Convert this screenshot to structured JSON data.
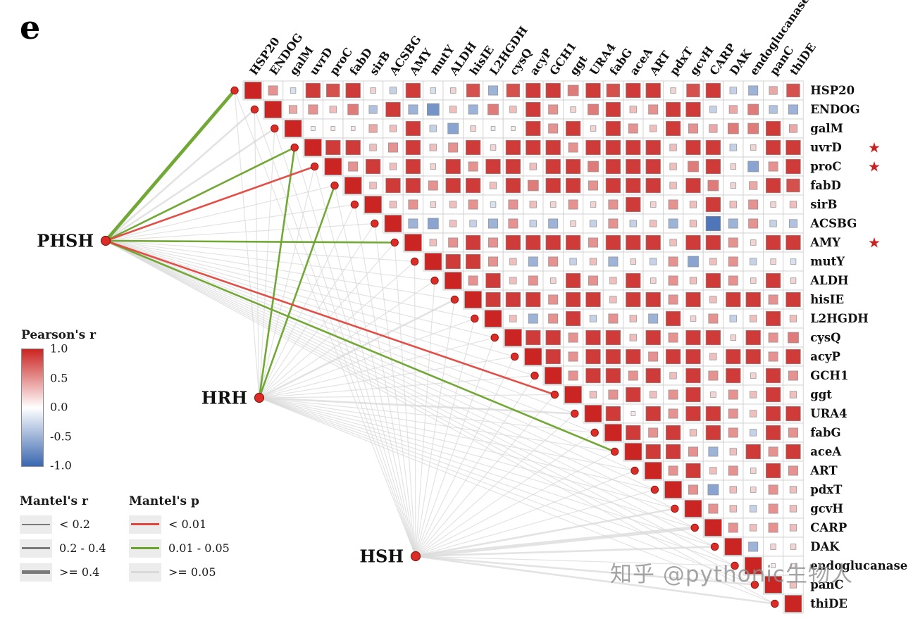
{
  "panel_label": "e",
  "watermark": "知乎 @pythonic生物人",
  "legend": {
    "pearson": {
      "title": "Pearson's r",
      "ticks": [
        "1.0",
        "0.5",
        "0.0",
        "-0.5",
        "-1.0"
      ],
      "colors": {
        "positive": "#ca2522",
        "zero": "#ffffff",
        "negative": "#3a67b0"
      }
    },
    "mantel_r": {
      "title": "Mantel's r",
      "items": [
        {
          "label": "< 0.2",
          "width": 1.2
        },
        {
          "label": "0.2 - 0.4",
          "width": 2.6
        },
        {
          "label": ">= 0.4",
          "width": 4.8
        }
      ]
    },
    "mantel_p": {
      "title": "Mantel's p",
      "items": [
        {
          "label": "< 0.01",
          "color": "#e2453c"
        },
        {
          "label": "0.01 - 0.05",
          "color": "#6aa42b"
        },
        {
          "label": ">= 0.05",
          "color": "#d9d9d9"
        }
      ]
    }
  },
  "chart_data": {
    "type": "heatmap",
    "title": "",
    "xlabel": "",
    "ylabel": "",
    "value_range": [
      -1,
      1
    ],
    "categories": [
      "HSP20",
      "ENDOG",
      "galM",
      "uvrD",
      "proC",
      "fabD",
      "sirB",
      "ACSBG",
      "AMY",
      "mutY",
      "ALDH",
      "hisIE",
      "L2HGDH",
      "cysQ",
      "acyP",
      "GCH1",
      "ggt",
      "URA4",
      "fabG",
      "aceA",
      "ART",
      "pdxT",
      "gcvH",
      "CARP",
      "DAK",
      "endoglucanase",
      "panC",
      "thiDE"
    ],
    "starred": [
      "uvrD",
      "proC",
      "AMY"
    ],
    "hubs": [
      "PHSH",
      "HRH",
      "HSH"
    ],
    "matrix_upper_triangle_rows": [
      [
        1,
        0.5,
        -0.2,
        0.9,
        0.8,
        0.9,
        0.2,
        -0.3,
        0.9,
        -0.2,
        0.2,
        0.8,
        -0.5,
        0.8,
        0.9,
        0.9,
        0.6,
        0.9,
        0.8,
        0.9,
        0.9,
        0.2,
        0.8,
        0.9,
        -0.3,
        -0.5,
        0.4,
        0.8
      ],
      [
        1,
        0.4,
        0.5,
        0.3,
        0.6,
        -0.4,
        0.9,
        -0.5,
        -0.7,
        0.3,
        -0.5,
        0.6,
        0.3,
        0.9,
        0.5,
        0.2,
        0.6,
        0.9,
        0.3,
        0.5,
        0.9,
        0.9,
        -0.3,
        0.4,
        0.6,
        -0.4,
        -0.5
      ],
      [
        1,
        -0.1,
        0.1,
        0.1,
        0.4,
        0.3,
        0.9,
        -0.3,
        -0.6,
        0.2,
        -0.1,
        0.1,
        0.9,
        0.5,
        0.9,
        0.2,
        0.9,
        0.5,
        0.3,
        0.9,
        0.5,
        0.4,
        0.6,
        0.6,
        0.9,
        0.4
      ],
      [
        1,
        0.9,
        0.9,
        0.3,
        0.5,
        0.9,
        0.3,
        0.5,
        0.9,
        0.2,
        0.9,
        0.9,
        0.9,
        0.5,
        0.9,
        0.9,
        0.9,
        0.9,
        0.3,
        0.9,
        0.9,
        -0.3,
        0.2,
        0.9,
        0.9
      ],
      [
        1,
        0.5,
        0.9,
        0.3,
        0.9,
        0.2,
        0.9,
        0.5,
        0.9,
        0.9,
        0.3,
        0.9,
        0.9,
        0.6,
        0.9,
        0.9,
        0.9,
        0.3,
        0.6,
        0.9,
        0.2,
        -0.6,
        0.5,
        0.9
      ],
      [
        1,
        0.3,
        0.9,
        0.9,
        0.5,
        0.9,
        0.9,
        0.3,
        0.9,
        0.6,
        0.9,
        0.9,
        0.5,
        0.9,
        0.9,
        0.9,
        0.3,
        0.9,
        0.6,
        0.2,
        0.4,
        0.9,
        0.8
      ],
      [
        1,
        0.3,
        0.5,
        0.2,
        0.3,
        0.5,
        -0.2,
        0.5,
        0.3,
        0.2,
        0.5,
        0.2,
        0.5,
        0.9,
        0.2,
        0.5,
        0.3,
        0.9,
        0.3,
        0.5,
        0.2,
        0.3
      ],
      [
        1,
        -0.5,
        -0.6,
        0.3,
        -0.3,
        -0.5,
        0.5,
        -0.3,
        -0.5,
        0.2,
        -0.3,
        0.5,
        -0.3,
        0.3,
        -0.5,
        0.3,
        -0.9,
        -0.5,
        0.5,
        -0.3,
        -0.4
      ],
      [
        1,
        0.3,
        0.5,
        0.9,
        0.5,
        0.9,
        0.9,
        0.9,
        0.9,
        0.5,
        0.9,
        0.9,
        0.9,
        0.3,
        0.9,
        0.9,
        0.5,
        0.2,
        0.9,
        0.9
      ],
      [
        1,
        0.9,
        0.9,
        0.5,
        0.3,
        -0.5,
        0.5,
        -0.3,
        0.3,
        -0.5,
        0.2,
        -0.3,
        0.5,
        -0.6,
        0.3,
        0.5,
        -0.3,
        0.2,
        -0.2
      ],
      [
        1,
        0.5,
        0.9,
        0.3,
        0.5,
        0.2,
        0.9,
        0.5,
        0.3,
        0.9,
        0.2,
        0.5,
        0.3,
        0.9,
        0.5,
        0.2,
        0.9,
        0.2
      ],
      [
        1,
        0.9,
        0.9,
        0.9,
        0.5,
        0.9,
        0.9,
        0.3,
        0.9,
        0.9,
        0.5,
        0.9,
        0.3,
        0.9,
        0.9,
        0.5,
        0.9
      ],
      [
        1,
        0.3,
        -0.5,
        0.5,
        0.9,
        -0.3,
        0.5,
        0.3,
        -0.5,
        0.9,
        0.2,
        0.5,
        -0.3,
        0.3,
        0.9,
        0.3
      ],
      [
        1,
        0.9,
        0.9,
        0.5,
        0.9,
        0.9,
        0.3,
        0.9,
        0.5,
        0.9,
        0.9,
        0.2,
        0.9,
        0.5,
        0.6
      ],
      [
        1,
        0.9,
        0.5,
        0.9,
        0.9,
        0.9,
        0.5,
        0.9,
        0.9,
        0.3,
        0.9,
        0.9,
        0.5,
        0.9
      ],
      [
        1,
        0.5,
        0.9,
        0.9,
        0.5,
        0.9,
        0.3,
        0.9,
        0.5,
        0.9,
        0.2,
        0.9,
        0.5
      ],
      [
        1,
        0.3,
        0.5,
        0.9,
        0.3,
        0.5,
        0.9,
        0.2,
        0.5,
        0.3,
        0.9,
        0.3
      ],
      [
        1,
        0.9,
        0.1,
        0.9,
        0.5,
        0.9,
        0.9,
        0.5,
        0.3,
        0.9,
        0.9
      ],
      [
        1,
        0.9,
        0.5,
        0.9,
        0.3,
        0.9,
        0.5,
        -0.3,
        0.9,
        0.5
      ],
      [
        1,
        0.9,
        0.9,
        0.5,
        -0.5,
        0.3,
        0.9,
        0.5,
        0.9
      ],
      [
        1,
        0.5,
        0.9,
        0.3,
        0.5,
        0.2,
        0.9,
        0.5
      ],
      [
        1,
        0.5,
        -0.6,
        0.3,
        0.2,
        0.5,
        0.3
      ],
      [
        1,
        0.5,
        0.3,
        -0.3,
        0.5,
        0.3
      ],
      [
        1,
        0.5,
        0.3,
        0.5,
        0.3
      ],
      [
        1,
        -0.5,
        0.2,
        0.2
      ],
      [
        1,
        0.1,
        0.1
      ],
      [
        1,
        0.3
      ],
      [
        1
      ]
    ],
    "mantel": {
      "default": {
        "r": "< 0.2",
        "p": ">= 0.05"
      },
      "links": [
        {
          "s": "PHSH",
          "t": "HSP20",
          "r": ">= 0.4",
          "p": "0.01 - 0.05"
        },
        {
          "s": "PHSH",
          "t": "uvrD",
          "r": "0.2 - 0.4",
          "p": "0.01 - 0.05"
        },
        {
          "s": "PHSH",
          "t": "proC",
          "r": "0.2 - 0.4",
          "p": "< 0.01"
        },
        {
          "s": "PHSH",
          "t": "AMY",
          "r": "0.2 - 0.4",
          "p": "0.01 - 0.05"
        },
        {
          "s": "PHSH",
          "t": "ggt",
          "r": "0.2 - 0.4",
          "p": "< 0.01"
        },
        {
          "s": "PHSH",
          "t": "aceA",
          "r": "0.2 - 0.4",
          "p": "0.01 - 0.05"
        },
        {
          "s": "PHSH",
          "t": "ENDOG",
          "r": "0.2 - 0.4",
          "p": ">= 0.05"
        },
        {
          "s": "PHSH",
          "t": "galM",
          "r": "0.2 - 0.4",
          "p": ">= 0.05"
        },
        {
          "s": "HRH",
          "t": "uvrD",
          "r": "0.2 - 0.4",
          "p": "0.01 - 0.05"
        },
        {
          "s": "HRH",
          "t": "fabD",
          "r": "0.2 - 0.4",
          "p": "0.01 - 0.05"
        },
        {
          "s": "HRH",
          "t": "hisIE",
          "r": "0.2 - 0.4",
          "p": ">= 0.05"
        },
        {
          "s": "HRH",
          "t": "URA4",
          "r": "0.2 - 0.4",
          "p": ">= 0.05"
        },
        {
          "s": "HSH",
          "t": "CARP",
          "r": ">= 0.4",
          "p": ">= 0.05"
        },
        {
          "s": "HSH",
          "t": "DAK",
          "r": "0.2 - 0.4",
          "p": ">= 0.05"
        },
        {
          "s": "HSH",
          "t": "gcvH",
          "r": "0.2 - 0.4",
          "p": ">= 0.05"
        },
        {
          "s": "HSH",
          "t": "panC",
          "r": "0.2 - 0.4",
          "p": ">= 0.05"
        },
        {
          "s": "HSH",
          "t": "thiDE",
          "r": "0.2 - 0.4",
          "p": ">= 0.05"
        }
      ]
    }
  }
}
